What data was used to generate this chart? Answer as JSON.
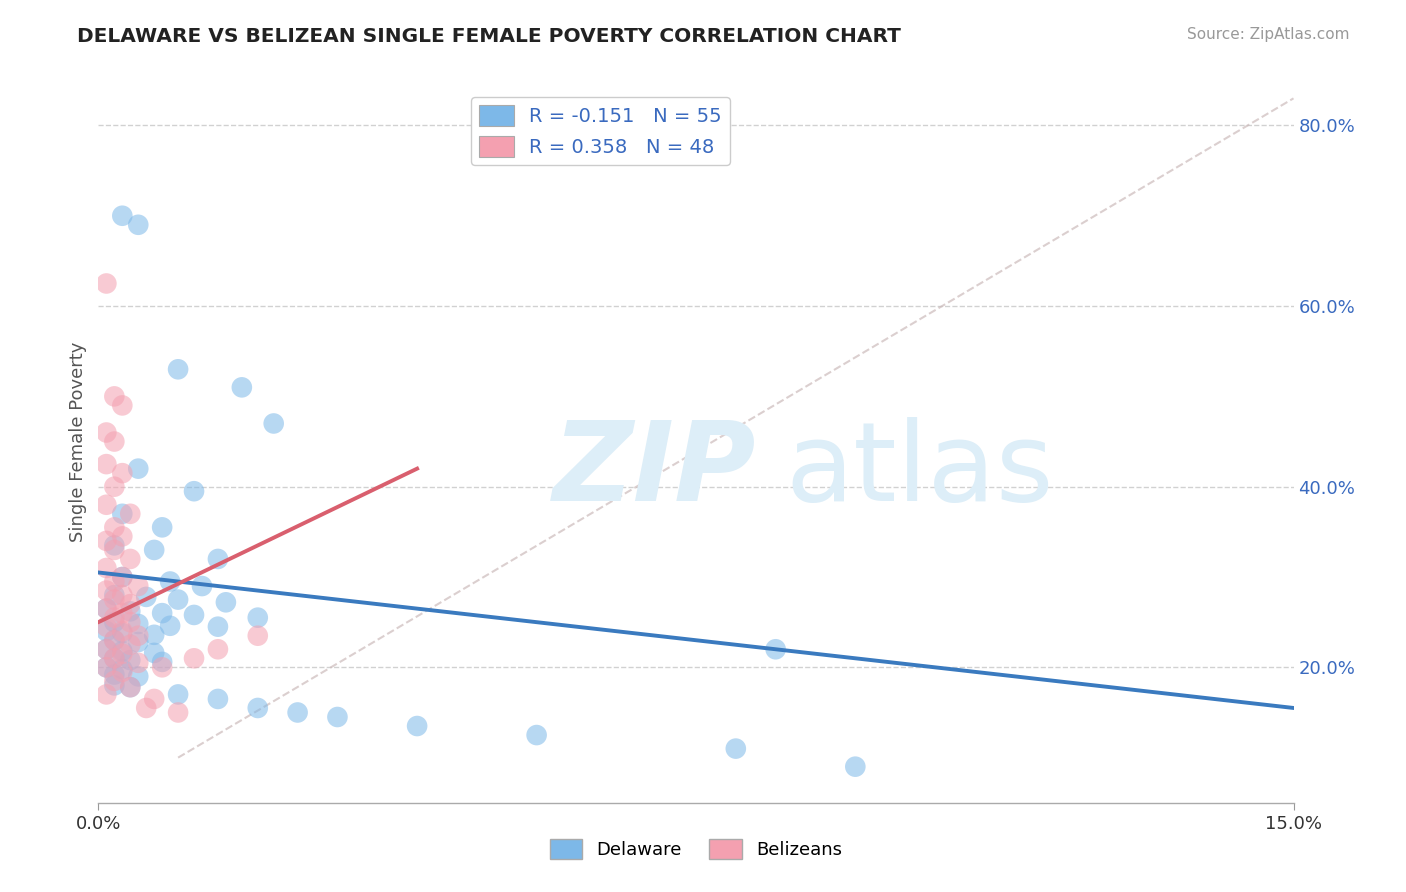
{
  "title": "DELAWARE VS BELIZEAN SINGLE FEMALE POVERTY CORRELATION CHART",
  "source": "Source: ZipAtlas.com",
  "ylabel": "Single Female Poverty",
  "legend_label1": "Delaware",
  "legend_label2": "Belizeans",
  "R1": -0.151,
  "N1": 55,
  "R2": 0.358,
  "N2": 48,
  "blue_color": "#7db8e8",
  "pink_color": "#f4a0b0",
  "blue_line_color": "#3a7abf",
  "pink_line_color": "#d95f6e",
  "text_color": "#3a6abf",
  "background_color": "#ffffff",
  "grid_color": "#cccccc",
  "diagonal_line_color": "#ccbbbb",
  "xlim": [
    0.0,
    0.15
  ],
  "ylim": [
    0.05,
    0.85
  ],
  "blue_dots": [
    [
      0.003,
      0.7
    ],
    [
      0.005,
      0.69
    ],
    [
      0.01,
      0.53
    ],
    [
      0.018,
      0.51
    ],
    [
      0.022,
      0.47
    ],
    [
      0.005,
      0.42
    ],
    [
      0.012,
      0.395
    ],
    [
      0.003,
      0.37
    ],
    [
      0.008,
      0.355
    ],
    [
      0.002,
      0.335
    ],
    [
      0.007,
      0.33
    ],
    [
      0.015,
      0.32
    ],
    [
      0.003,
      0.3
    ],
    [
      0.009,
      0.295
    ],
    [
      0.013,
      0.29
    ],
    [
      0.002,
      0.28
    ],
    [
      0.006,
      0.278
    ],
    [
      0.01,
      0.275
    ],
    [
      0.016,
      0.272
    ],
    [
      0.001,
      0.265
    ],
    [
      0.004,
      0.262
    ],
    [
      0.008,
      0.26
    ],
    [
      0.012,
      0.258
    ],
    [
      0.002,
      0.25
    ],
    [
      0.005,
      0.248
    ],
    [
      0.009,
      0.246
    ],
    [
      0.001,
      0.24
    ],
    [
      0.003,
      0.238
    ],
    [
      0.007,
      0.236
    ],
    [
      0.002,
      0.23
    ],
    [
      0.005,
      0.228
    ],
    [
      0.001,
      0.22
    ],
    [
      0.003,
      0.218
    ],
    [
      0.007,
      0.216
    ],
    [
      0.002,
      0.21
    ],
    [
      0.004,
      0.208
    ],
    [
      0.008,
      0.206
    ],
    [
      0.001,
      0.2
    ],
    [
      0.003,
      0.198
    ],
    [
      0.002,
      0.192
    ],
    [
      0.005,
      0.19
    ],
    [
      0.015,
      0.245
    ],
    [
      0.02,
      0.255
    ],
    [
      0.002,
      0.18
    ],
    [
      0.004,
      0.178
    ],
    [
      0.01,
      0.17
    ],
    [
      0.015,
      0.165
    ],
    [
      0.02,
      0.155
    ],
    [
      0.025,
      0.15
    ],
    [
      0.03,
      0.145
    ],
    [
      0.04,
      0.135
    ],
    [
      0.055,
      0.125
    ],
    [
      0.08,
      0.11
    ],
    [
      0.095,
      0.09
    ],
    [
      0.085,
      0.22
    ]
  ],
  "pink_dots": [
    [
      0.001,
      0.625
    ],
    [
      0.002,
      0.5
    ],
    [
      0.003,
      0.49
    ],
    [
      0.001,
      0.46
    ],
    [
      0.002,
      0.45
    ],
    [
      0.001,
      0.425
    ],
    [
      0.003,
      0.415
    ],
    [
      0.002,
      0.4
    ],
    [
      0.001,
      0.38
    ],
    [
      0.004,
      0.37
    ],
    [
      0.002,
      0.355
    ],
    [
      0.003,
      0.345
    ],
    [
      0.001,
      0.34
    ],
    [
      0.002,
      0.33
    ],
    [
      0.004,
      0.32
    ],
    [
      0.001,
      0.31
    ],
    [
      0.003,
      0.3
    ],
    [
      0.002,
      0.295
    ],
    [
      0.005,
      0.29
    ],
    [
      0.001,
      0.285
    ],
    [
      0.003,
      0.28
    ],
    [
      0.002,
      0.275
    ],
    [
      0.004,
      0.27
    ],
    [
      0.001,
      0.265
    ],
    [
      0.003,
      0.26
    ],
    [
      0.002,
      0.255
    ],
    [
      0.004,
      0.25
    ],
    [
      0.001,
      0.245
    ],
    [
      0.003,
      0.24
    ],
    [
      0.005,
      0.235
    ],
    [
      0.002,
      0.23
    ],
    [
      0.004,
      0.225
    ],
    [
      0.001,
      0.22
    ],
    [
      0.003,
      0.215
    ],
    [
      0.002,
      0.21
    ],
    [
      0.005,
      0.205
    ],
    [
      0.001,
      0.2
    ],
    [
      0.003,
      0.195
    ],
    [
      0.002,
      0.185
    ],
    [
      0.004,
      0.178
    ],
    [
      0.001,
      0.17
    ],
    [
      0.007,
      0.165
    ],
    [
      0.006,
      0.155
    ],
    [
      0.01,
      0.15
    ],
    [
      0.008,
      0.2
    ],
    [
      0.012,
      0.21
    ],
    [
      0.015,
      0.22
    ],
    [
      0.02,
      0.235
    ]
  ]
}
